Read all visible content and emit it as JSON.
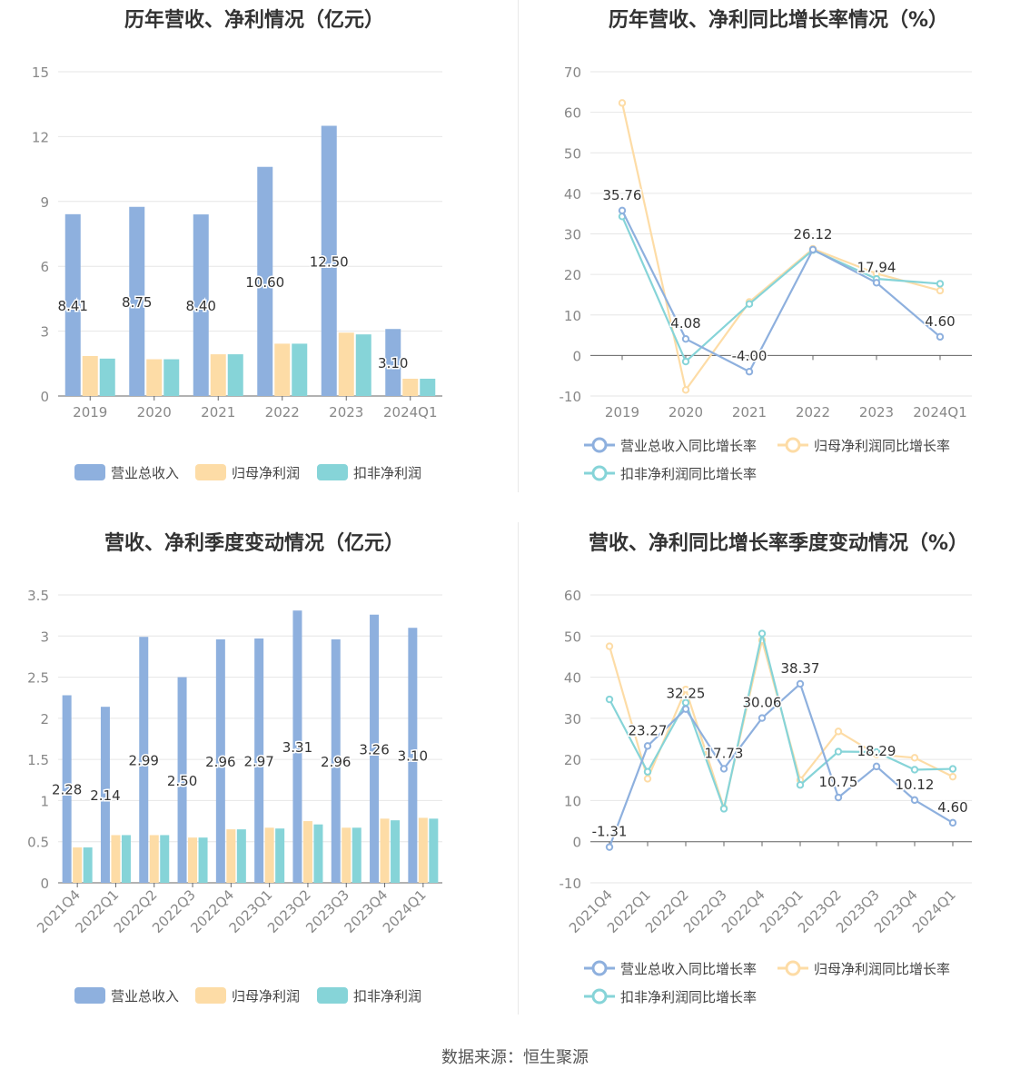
{
  "chart_data": [
    {
      "type": "bar",
      "title": "历年营收、净利情况（亿元）",
      "categories": [
        "2019",
        "2020",
        "2021",
        "2022",
        "2023",
        "2024Q1"
      ],
      "ylim": [
        0,
        15
      ],
      "yticks": [
        0,
        3,
        6,
        9,
        12,
        15
      ],
      "series": [
        {
          "name": "营业总收入",
          "values": [
            8.41,
            8.75,
            8.4,
            10.6,
            12.5,
            3.1
          ],
          "color": "#8eb0de"
        },
        {
          "name": "归母净利润",
          "values": [
            1.85,
            1.7,
            1.93,
            2.42,
            2.93,
            0.8
          ],
          "color": "#fddca6"
        },
        {
          "name": "扣非净利润",
          "values": [
            1.73,
            1.7,
            1.93,
            2.42,
            2.85,
            0.8
          ],
          "color": "#86d4d8"
        }
      ],
      "data_labels": [
        "8.41",
        "8.75",
        "8.40",
        "10.60",
        "12.50",
        "3.10"
      ],
      "legend": "bottom",
      "grid": true
    },
    {
      "type": "line",
      "title": "历年营收、净利同比增长率情况（%）",
      "categories": [
        "2019",
        "2020",
        "2021",
        "2022",
        "2023",
        "2024Q1"
      ],
      "ylim": [
        -10,
        70
      ],
      "yticks": [
        -10,
        0,
        10,
        20,
        30,
        40,
        50,
        60,
        70
      ],
      "series": [
        {
          "name": "营业总收入同比增长率",
          "values": [
            35.76,
            4.08,
            -4.0,
            26.12,
            17.94,
            4.6
          ],
          "color": "#8eb0de"
        },
        {
          "name": "归母净利润同比增长率",
          "values": [
            62.3,
            -8.5,
            13.2,
            26.3,
            20.2,
            16.0
          ],
          "color": "#fddca6"
        },
        {
          "name": "扣非净利润同比增长率",
          "values": [
            34.3,
            -1.5,
            12.7,
            26.0,
            18.9,
            17.7
          ],
          "color": "#86d4d8"
        }
      ],
      "data_labels": [
        "35.76",
        "4.08",
        "-4.00",
        "26.12",
        "17.94",
        "4.60"
      ],
      "legend": "bottom",
      "grid": true
    },
    {
      "type": "bar",
      "title": "营收、净利季度变动情况（亿元）",
      "categories": [
        "2021Q4",
        "2022Q1",
        "2022Q2",
        "2022Q3",
        "2022Q4",
        "2023Q1",
        "2023Q2",
        "2023Q3",
        "2023Q4",
        "2024Q1"
      ],
      "ylim": [
        0,
        3.5
      ],
      "yticks": [
        0,
        0.5,
        1,
        1.5,
        2,
        2.5,
        3,
        3.5
      ],
      "series": [
        {
          "name": "营业总收入",
          "values": [
            2.28,
            2.14,
            2.99,
            2.5,
            2.96,
            2.97,
            3.31,
            2.96,
            3.26,
            3.1
          ],
          "color": "#8eb0de"
        },
        {
          "name": "归母净利润",
          "values": [
            0.43,
            0.58,
            0.58,
            0.55,
            0.65,
            0.67,
            0.75,
            0.67,
            0.78,
            0.79
          ],
          "color": "#fddca6"
        },
        {
          "name": "扣非净利润",
          "values": [
            0.43,
            0.58,
            0.58,
            0.55,
            0.65,
            0.66,
            0.71,
            0.67,
            0.76,
            0.78
          ],
          "color": "#86d4d8"
        }
      ],
      "data_labels": [
        "2.28",
        "2.14",
        "2.99",
        "2.50",
        "2.96",
        "2.97",
        "3.31",
        "2.96",
        "3.26",
        "3.10"
      ],
      "legend": "bottom",
      "grid": true
    },
    {
      "type": "line",
      "title": "营收、净利同比增长率季度变动情况（%）",
      "categories": [
        "2021Q4",
        "2022Q1",
        "2022Q2",
        "2022Q3",
        "2022Q4",
        "2023Q1",
        "2023Q2",
        "2023Q3",
        "2023Q4",
        "2024Q1"
      ],
      "ylim": [
        -10,
        60
      ],
      "yticks": [
        -10,
        0,
        10,
        20,
        30,
        40,
        50,
        60
      ],
      "series": [
        {
          "name": "营业总收入同比增长率",
          "values": [
            -1.31,
            23.27,
            32.25,
            17.73,
            30.06,
            38.37,
            10.75,
            18.29,
            10.12,
            4.6
          ],
          "color": "#8eb0de"
        },
        {
          "name": "归母净利润同比增长率",
          "values": [
            47.5,
            15.3,
            37.0,
            8.2,
            49.0,
            15.0,
            26.8,
            21.2,
            20.4,
            15.8
          ],
          "color": "#fddca6"
        },
        {
          "name": "扣非净利润同比增长率",
          "values": [
            34.6,
            17.0,
            33.8,
            8.0,
            50.6,
            13.8,
            21.9,
            21.8,
            17.5,
            17.7
          ],
          "color": "#86d4d8"
        }
      ],
      "data_labels": [
        "-1.31",
        "23.27",
        "32.25",
        "17.73",
        "30.06",
        "38.37",
        "10.75",
        "18.29",
        "10.12",
        "4.60"
      ],
      "legend": "bottom",
      "grid": true
    }
  ],
  "source_text": "数据来源：恒生聚源"
}
